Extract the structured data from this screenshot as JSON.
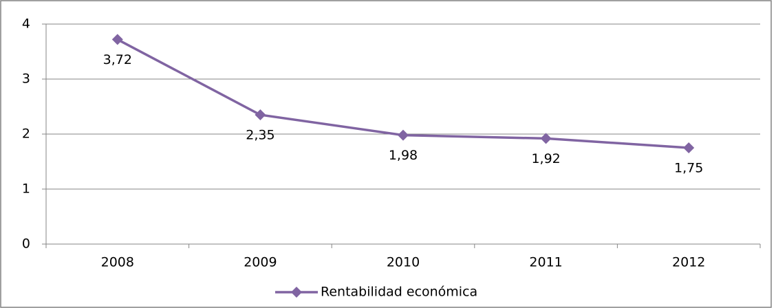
{
  "chart_data": {
    "type": "line",
    "categories": [
      "2008",
      "2009",
      "2010",
      "2011",
      "2012"
    ],
    "series": [
      {
        "name": "Rentabilidad económica",
        "color": "#8064a2",
        "values": [
          3.72,
          2.35,
          1.98,
          1.92,
          1.75
        ],
        "value_labels": [
          "3,72",
          "2,35",
          "1,98",
          "1,92",
          "1,75"
        ]
      }
    ],
    "ylim": [
      0,
      4
    ],
    "yticks": [
      0,
      1,
      2,
      3,
      4
    ],
    "grid": true,
    "legend": "bottom"
  }
}
